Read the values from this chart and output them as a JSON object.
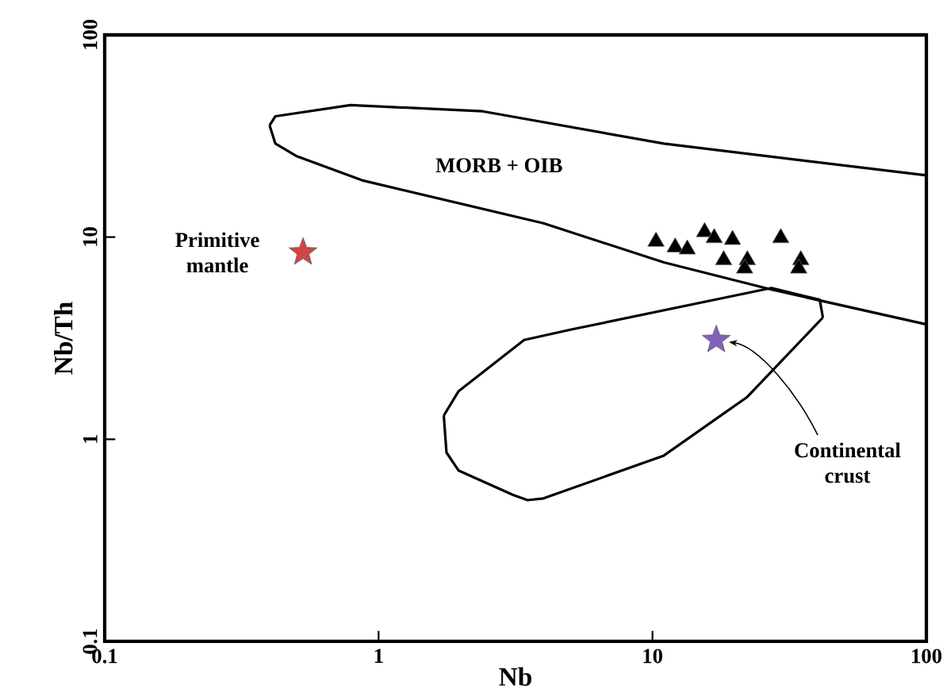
{
  "chart_data": {
    "type": "scatter",
    "xlabel": "Nb",
    "ylabel": "Nb/Th",
    "log": "xy",
    "xlim": [
      0.1,
      100
    ],
    "ylim": [
      0.1,
      100
    ],
    "xticks": [
      0.1,
      1,
      10,
      100
    ],
    "yticks": [
      0.1,
      1,
      10,
      100
    ],
    "series": [
      {
        "marker": "triangle",
        "color": "#000000",
        "x": [
          10.3,
          12.1,
          13.4,
          15.5,
          16.8,
          19.6,
          18.2,
          22.2,
          21.7,
          29.4,
          34.8,
          34.2
        ],
        "values": [
          9.5,
          8.9,
          8.7,
          10.6,
          9.9,
          9.7,
          7.7,
          7.7,
          7.0,
          9.9,
          7.7,
          7.0
        ]
      },
      {
        "marker": "star",
        "name": "Primitive mantle",
        "color": "#d04545",
        "x": [
          0.53
        ],
        "values": [
          8.4
        ]
      },
      {
        "marker": "star",
        "name": "Continental crust",
        "color": "#7f63b8",
        "x": [
          17.1
        ],
        "values": [
          3.1
        ]
      },
      {
        "type": "line",
        "marker": "none",
        "name": "MORB + OIB",
        "color": "#000000",
        "x": [
          0.4,
          0.42,
          0.79,
          2.4,
          11.0,
          100
        ],
        "values": [
          35.7,
          39.6,
          45,
          41.9,
          29,
          20.2
        ]
      },
      {
        "type": "line",
        "marker": "none",
        "color": "#000000",
        "x": [
          0.4,
          0.42,
          0.5,
          0.87,
          4.0,
          11.0,
          27.2,
          100
        ],
        "values": [
          35.7,
          29,
          25.2,
          19.1,
          11.7,
          7.5,
          5.5,
          3.7
        ]
      },
      {
        "type": "line",
        "marker": "none",
        "color": "#000000",
        "x": [
          1.73,
          1.96,
          3.4,
          5.1,
          27.2,
          40.8,
          41.9
        ],
        "values": [
          1.31,
          1.73,
          3.1,
          3.5,
          5.6,
          4.9,
          4.0
        ]
      },
      {
        "type": "line",
        "marker": "none",
        "color": "#000000",
        "x": [
          1.73,
          1.77,
          1.96,
          3.1,
          3.5,
          4.0,
          11.0,
          22.2,
          41.9
        ],
        "values": [
          1.31,
          0.86,
          0.7,
          0.53,
          0.5,
          0.51,
          0.83,
          1.62,
          4.0
        ]
      }
    ]
  }
}
